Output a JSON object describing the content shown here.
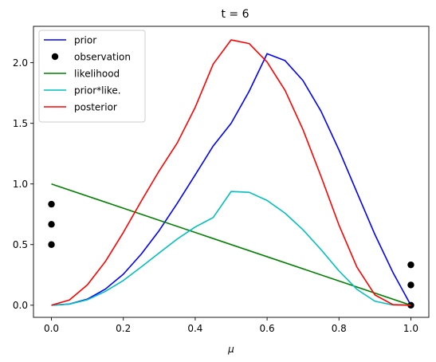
{
  "chart_data": {
    "type": "line",
    "title": "t = 6",
    "xlabel": "μ",
    "ylabel": "",
    "xlim": [
      -0.05,
      1.05
    ],
    "ylim": [
      -0.1,
      2.3
    ],
    "x_ticks": [
      "0.0",
      "0.2",
      "0.4",
      "0.6",
      "0.8",
      "1.0"
    ],
    "y_ticks": [
      "0.0",
      "0.5",
      "1.0",
      "1.5",
      "2.0"
    ],
    "grid": false,
    "legend_position": "top-left",
    "series": [
      {
        "name": "prior",
        "color": "#0000ff",
        "kind": "line",
        "x": [
          0.0,
          0.05,
          0.1,
          0.15,
          0.2,
          0.25,
          0.3,
          0.35,
          0.4,
          0.45,
          0.5,
          0.55,
          0.6,
          0.65,
          0.7,
          0.75,
          0.8,
          0.85,
          0.9,
          0.95,
          1.0
        ],
        "y": [
          0.0,
          0.01,
          0.05,
          0.133,
          0.256,
          0.422,
          0.617,
          0.84,
          1.075,
          1.313,
          1.5,
          1.764,
          2.074,
          2.017,
          1.852,
          1.6,
          1.28,
          0.93,
          0.583,
          0.271,
          0.0
        ]
      },
      {
        "name": "observation",
        "color": "#000000",
        "kind": "points",
        "x": [
          0.0,
          0.0,
          0.0,
          1.0,
          1.0,
          1.0
        ],
        "y": [
          0.833,
          0.667,
          0.5,
          0.333,
          0.167,
          0.0
        ]
      },
      {
        "name": "likelihood",
        "color": "#008000",
        "kind": "line",
        "x": [
          0.0,
          1.0
        ],
        "y": [
          1.0,
          0.0
        ]
      },
      {
        "name": "prior*like.",
        "color": "#00bfbf",
        "kind": "line",
        "x": [
          0.0,
          0.05,
          0.1,
          0.15,
          0.2,
          0.25,
          0.3,
          0.35,
          0.4,
          0.45,
          0.5,
          0.55,
          0.6,
          0.65,
          0.7,
          0.75,
          0.8,
          0.85,
          0.9,
          0.95,
          1.0
        ],
        "y": [
          0.0,
          0.009,
          0.045,
          0.114,
          0.204,
          0.316,
          0.432,
          0.546,
          0.645,
          0.723,
          0.938,
          0.931,
          0.864,
          0.759,
          0.622,
          0.459,
          0.283,
          0.131,
          0.033,
          0.002,
          0.0
        ]
      },
      {
        "name": "posterior",
        "color": "#ff0000",
        "kind": "line",
        "x": [
          0.0,
          0.05,
          0.1,
          0.15,
          0.2,
          0.25,
          0.3,
          0.35,
          0.4,
          0.45,
          0.5,
          0.55,
          0.6,
          0.65,
          0.7,
          0.75,
          0.8,
          0.85,
          0.9,
          0.95,
          1.0
        ],
        "y": [
          0.0,
          0.043,
          0.168,
          0.36,
          0.6,
          0.859,
          1.109,
          1.338,
          1.632,
          1.988,
          2.188,
          2.158,
          2.005,
          1.772,
          1.447,
          1.063,
          0.661,
          0.314,
          0.085,
          0.005,
          0.0
        ]
      }
    ]
  }
}
